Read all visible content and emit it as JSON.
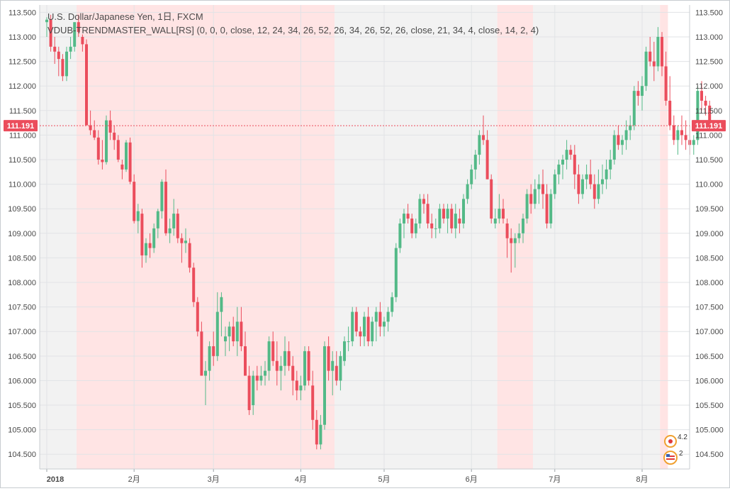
{
  "header": {
    "title": "U.S. Dollar/Japanese Yen, 1日, FXCM",
    "indicator": "VDUB-TRENDMASTER_WALL[RS] (0, 0, 0, close, 12, 24, 34, 26, 52, 26, 34, 26, 52, 26, close, 21, 34, 4, close, 14, 2, 4)"
  },
  "colors": {
    "up": "#53b987",
    "down": "#eb4d5c",
    "band_red": "#ffe4e4",
    "band_gray": "#f2f2f2",
    "grid": "#e1e3e6",
    "price_label_bg": "#eb4d5c"
  },
  "current_price": {
    "label": "111.191",
    "value": 111.191
  },
  "icons": [
    "jp-flag-icon",
    "us-flag-icon"
  ],
  "event_labels": [
    "4.2",
    "2"
  ],
  "chart_data": {
    "type": "candlestick",
    "title": "U.S. Dollar/Japanese Yen, 1日, FXCM",
    "ylim": [
      104.2,
      113.65
    ],
    "y_ticks": [
      "104.500",
      "105.000",
      "105.500",
      "106.000",
      "106.500",
      "107.000",
      "107.500",
      "108.000",
      "108.500",
      "109.000",
      "109.500",
      "110.000",
      "110.500",
      "111.000",
      "111.500",
      "112.000",
      "112.500",
      "113.000",
      "113.500"
    ],
    "x_ticks": [
      {
        "label": "2018",
        "index": 0
      },
      {
        "label": "2月",
        "index": 22
      },
      {
        "label": "3月",
        "index": 42
      },
      {
        "label": "4月",
        "index": 64
      },
      {
        "label": "5月",
        "index": 85
      },
      {
        "label": "6月",
        "index": 107
      },
      {
        "label": "7月",
        "index": 128
      },
      {
        "label": "8月",
        "index": 150
      }
    ],
    "bands": [
      {
        "from": -2,
        "to": 7.5,
        "color": "gray"
      },
      {
        "from": 7.5,
        "to": 72.5,
        "color": "red"
      },
      {
        "from": 72.5,
        "to": 113.5,
        "color": "gray"
      },
      {
        "from": 113.5,
        "to": 122.5,
        "color": "red"
      },
      {
        "from": 122.5,
        "to": 154.5,
        "color": "gray"
      },
      {
        "from": 154.5,
        "to": 156.5,
        "color": "red"
      }
    ],
    "candles": [
      [
        113.3,
        113.4,
        113.0,
        113.35
      ],
      [
        113.35,
        113.45,
        112.7,
        112.8
      ],
      [
        112.8,
        113.0,
        112.45,
        112.7
      ],
      [
        112.7,
        112.8,
        112.2,
        112.55
      ],
      [
        112.55,
        112.65,
        112.1,
        112.2
      ],
      [
        112.2,
        112.8,
        112.1,
        112.7
      ],
      [
        112.7,
        113.0,
        112.55,
        112.8
      ],
      [
        112.8,
        113.3,
        112.7,
        113.3
      ],
      [
        113.3,
        113.45,
        113.0,
        113.1
      ],
      [
        113.0,
        113.05,
        112.7,
        112.85
      ],
      [
        112.85,
        112.95,
        111.2,
        111.2
      ],
      [
        111.2,
        111.5,
        111.0,
        111.1
      ],
      [
        111.1,
        111.3,
        110.9,
        110.95
      ],
      [
        110.95,
        111.1,
        110.4,
        110.5
      ],
      [
        110.5,
        110.9,
        110.3,
        110.45
      ],
      [
        110.45,
        111.4,
        110.4,
        111.3
      ],
      [
        111.3,
        111.5,
        110.9,
        111.05
      ],
      [
        111.05,
        111.2,
        110.7,
        110.9
      ],
      [
        110.9,
        111.0,
        110.45,
        110.5
      ],
      [
        110.4,
        110.5,
        110.1,
        110.3
      ],
      [
        110.3,
        110.9,
        110.25,
        110.85
      ],
      [
        110.85,
        110.95,
        110.0,
        110.05
      ],
      [
        110.05,
        110.2,
        109.2,
        109.25
      ],
      [
        109.25,
        109.6,
        109.0,
        109.45
      ],
      [
        109.4,
        109.5,
        108.3,
        108.55
      ],
      [
        108.55,
        108.9,
        108.4,
        108.8
      ],
      [
        108.8,
        109.0,
        108.5,
        108.7
      ],
      [
        108.7,
        109.2,
        108.6,
        109.1
      ],
      [
        109.1,
        109.5,
        108.9,
        109.45
      ],
      [
        109.45,
        110.1,
        109.3,
        110.05
      ],
      [
        110.05,
        110.3,
        108.95,
        109.0
      ],
      [
        109.0,
        109.3,
        108.8,
        109.1
      ],
      [
        109.1,
        109.7,
        108.95,
        109.4
      ],
      [
        109.4,
        109.5,
        108.8,
        108.9
      ],
      [
        108.9,
        109.0,
        108.4,
        108.8
      ],
      [
        108.8,
        109.1,
        108.6,
        108.85
      ],
      [
        108.8,
        108.9,
        108.2,
        108.3
      ],
      [
        108.3,
        108.4,
        107.5,
        107.6
      ],
      [
        107.6,
        107.7,
        106.9,
        107.0
      ],
      [
        107.0,
        107.2,
        106.1,
        106.1
      ],
      [
        106.1,
        106.4,
        105.5,
        106.2
      ],
      [
        106.2,
        106.8,
        106.0,
        106.7
      ],
      [
        106.7,
        107.0,
        106.3,
        106.5
      ],
      [
        106.5,
        107.8,
        106.4,
        107.4
      ],
      [
        107.4,
        107.8,
        106.9,
        107.7
      ],
      [
        106.8,
        107.1,
        106.5,
        106.9
      ],
      [
        106.9,
        107.2,
        106.6,
        107.1
      ],
      [
        107.1,
        107.3,
        106.7,
        106.8
      ],
      [
        106.8,
        107.5,
        106.5,
        107.2
      ],
      [
        107.2,
        107.5,
        106.6,
        106.7
      ],
      [
        106.7,
        107.0,
        106.1,
        106.1
      ],
      [
        106.1,
        106.3,
        105.3,
        105.4
      ],
      [
        105.5,
        106.2,
        105.3,
        106.1
      ],
      [
        106.1,
        106.3,
        105.8,
        106.0
      ],
      [
        106.0,
        106.3,
        105.9,
        106.1
      ],
      [
        106.1,
        106.4,
        105.9,
        106.2
      ],
      [
        106.2,
        106.9,
        106.0,
        106.8
      ],
      [
        106.8,
        107.0,
        106.3,
        106.4
      ],
      [
        106.4,
        106.8,
        105.9,
        106.2
      ],
      [
        106.2,
        106.5,
        105.8,
        106.3
      ],
      [
        106.3,
        106.9,
        106.1,
        106.6
      ],
      [
        106.6,
        106.8,
        106.2,
        106.3
      ],
      [
        106.3,
        106.5,
        105.7,
        106.0
      ],
      [
        106.0,
        106.2,
        105.6,
        105.8
      ],
      [
        105.8,
        106.1,
        105.6,
        105.9
      ],
      [
        105.9,
        106.7,
        105.8,
        106.6
      ],
      [
        106.6,
        106.7,
        105.9,
        106.0
      ],
      [
        105.9,
        106.2,
        105.0,
        105.2
      ],
      [
        105.2,
        105.4,
        104.6,
        104.7
      ],
      [
        104.7,
        105.3,
        104.6,
        105.1
      ],
      [
        105.1,
        106.8,
        105.0,
        106.7
      ],
      [
        106.7,
        106.9,
        106.0,
        106.2
      ],
      [
        106.2,
        106.6,
        105.7,
        106.4
      ],
      [
        106.3,
        106.6,
        105.9,
        106.0
      ],
      [
        106.0,
        106.6,
        105.8,
        106.5
      ],
      [
        106.4,
        106.9,
        106.3,
        106.8
      ],
      [
        106.8,
        107.1,
        106.6,
        106.8
      ],
      [
        106.8,
        107.5,
        106.7,
        107.4
      ],
      [
        107.4,
        107.5,
        106.9,
        107.0
      ],
      [
        107.0,
        107.1,
        106.7,
        106.9
      ],
      [
        106.9,
        107.4,
        106.7,
        107.3
      ],
      [
        107.3,
        107.5,
        106.7,
        106.8
      ],
      [
        106.8,
        107.3,
        106.7,
        107.2
      ],
      [
        107.2,
        107.5,
        106.8,
        107.4
      ],
      [
        107.4,
        107.6,
        106.9,
        107.1
      ],
      [
        107.1,
        107.3,
        106.9,
        107.2
      ],
      [
        107.2,
        107.5,
        107.0,
        107.4
      ],
      [
        107.4,
        107.8,
        107.3,
        107.7
      ],
      [
        107.7,
        108.8,
        107.6,
        108.7
      ],
      [
        108.7,
        109.3,
        108.6,
        109.2
      ],
      [
        109.2,
        109.5,
        108.9,
        109.4
      ],
      [
        109.4,
        109.6,
        109.2,
        109.3
      ],
      [
        109.3,
        109.4,
        108.9,
        109.0
      ],
      [
        109.0,
        109.3,
        108.9,
        109.2
      ],
      [
        109.2,
        109.8,
        109.1,
        109.7
      ],
      [
        109.7,
        109.8,
        109.4,
        109.6
      ],
      [
        109.6,
        109.8,
        109.1,
        109.2
      ],
      [
        109.2,
        109.4,
        108.9,
        109.1
      ],
      [
        109.1,
        109.3,
        108.9,
        109.1
      ],
      [
        109.1,
        109.6,
        109.0,
        109.5
      ],
      [
        109.5,
        109.6,
        109.2,
        109.3
      ],
      [
        109.3,
        109.6,
        109.0,
        109.5
      ],
      [
        109.5,
        109.6,
        109.0,
        109.1
      ],
      [
        109.1,
        109.6,
        108.9,
        109.4
      ],
      [
        109.3,
        109.5,
        109.0,
        109.2
      ],
      [
        109.2,
        109.8,
        109.1,
        109.7
      ],
      [
        109.7,
        110.1,
        109.6,
        110.0
      ],
      [
        110.0,
        110.4,
        109.9,
        110.3
      ],
      [
        110.3,
        110.7,
        110.1,
        110.6
      ],
      [
        110.6,
        111.1,
        110.4,
        111.0
      ],
      [
        111.0,
        111.4,
        110.8,
        110.9
      ],
      [
        110.9,
        111.1,
        110.1,
        110.1
      ],
      [
        110.1,
        110.2,
        109.2,
        109.3
      ],
      [
        109.2,
        109.5,
        109.1,
        109.3
      ],
      [
        109.3,
        109.8,
        109.2,
        109.5
      ],
      [
        109.5,
        109.7,
        109.2,
        109.3
      ],
      [
        109.2,
        109.3,
        108.5,
        108.9
      ],
      [
        108.9,
        109.1,
        108.2,
        108.8
      ],
      [
        108.8,
        109.0,
        108.3,
        108.9
      ],
      [
        108.9,
        109.2,
        108.8,
        109.0
      ],
      [
        109.0,
        109.4,
        108.8,
        109.3
      ],
      [
        109.3,
        109.9,
        109.2,
        109.8
      ],
      [
        109.8,
        110.0,
        109.4,
        109.6
      ],
      [
        109.6,
        110.1,
        109.5,
        109.9
      ],
      [
        109.9,
        110.2,
        109.6,
        110.0
      ],
      [
        110.0,
        110.3,
        109.5,
        109.8
      ],
      [
        109.8,
        110.0,
        109.1,
        109.2
      ],
      [
        109.2,
        109.9,
        109.1,
        109.8
      ],
      [
        109.8,
        110.3,
        109.7,
        110.2
      ],
      [
        110.2,
        110.5,
        110.0,
        110.4
      ],
      [
        110.4,
        110.6,
        110.1,
        110.5
      ],
      [
        110.5,
        110.9,
        110.3,
        110.7
      ],
      [
        110.7,
        110.8,
        110.5,
        110.6
      ],
      [
        110.6,
        110.8,
        109.9,
        110.2
      ],
      [
        110.2,
        110.4,
        109.6,
        109.8
      ],
      [
        109.8,
        110.2,
        109.7,
        110.1
      ],
      [
        110.1,
        110.4,
        109.9,
        110.2
      ],
      [
        110.2,
        110.5,
        109.9,
        110.0
      ],
      [
        110.0,
        110.2,
        109.5,
        109.7
      ],
      [
        109.7,
        110.3,
        109.6,
        110.0
      ],
      [
        110.0,
        110.4,
        109.8,
        110.1
      ],
      [
        110.1,
        110.5,
        109.9,
        110.3
      ],
      [
        110.3,
        110.7,
        110.1,
        110.5
      ],
      [
        110.5,
        111.1,
        110.4,
        111.0
      ],
      [
        111.0,
        111.2,
        110.7,
        110.8
      ],
      [
        110.8,
        111.0,
        110.6,
        110.9
      ],
      [
        110.9,
        111.3,
        110.7,
        111.1
      ],
      [
        111.1,
        111.4,
        110.9,
        111.2
      ],
      [
        111.2,
        112.0,
        111.1,
        111.9
      ],
      [
        111.9,
        112.1,
        111.6,
        111.8
      ],
      [
        111.8,
        112.2,
        111.5,
        112.0
      ],
      [
        112.0,
        112.8,
        111.9,
        112.7
      ],
      [
        112.7,
        113.0,
        112.4,
        112.5
      ],
      [
        112.5,
        112.9,
        112.1,
        112.4
      ],
      [
        112.4,
        113.2,
        112.3,
        113.0
      ],
      [
        113.0,
        113.1,
        112.2,
        112.4
      ],
      [
        112.4,
        112.7,
        111.6,
        111.7
      ],
      [
        111.7,
        112.2,
        111.1,
        111.2
      ],
      [
        111.2,
        111.4,
        110.8,
        110.9
      ],
      [
        110.9,
        111.2,
        110.6,
        111.1
      ],
      [
        111.1,
        111.4,
        110.8,
        111.0
      ],
      [
        111.0,
        111.3,
        110.7,
        110.9
      ],
      [
        110.9,
        111.2,
        110.6,
        110.8
      ],
      [
        110.8,
        111.0,
        110.6,
        110.9
      ],
      [
        110.9,
        112.0,
        110.8,
        111.9
      ],
      [
        111.9,
        112.1,
        111.5,
        111.7
      ],
      [
        111.7,
        111.8,
        111.4,
        111.6
      ],
      [
        111.6,
        111.7,
        111.2,
        111.2
      ]
    ]
  }
}
